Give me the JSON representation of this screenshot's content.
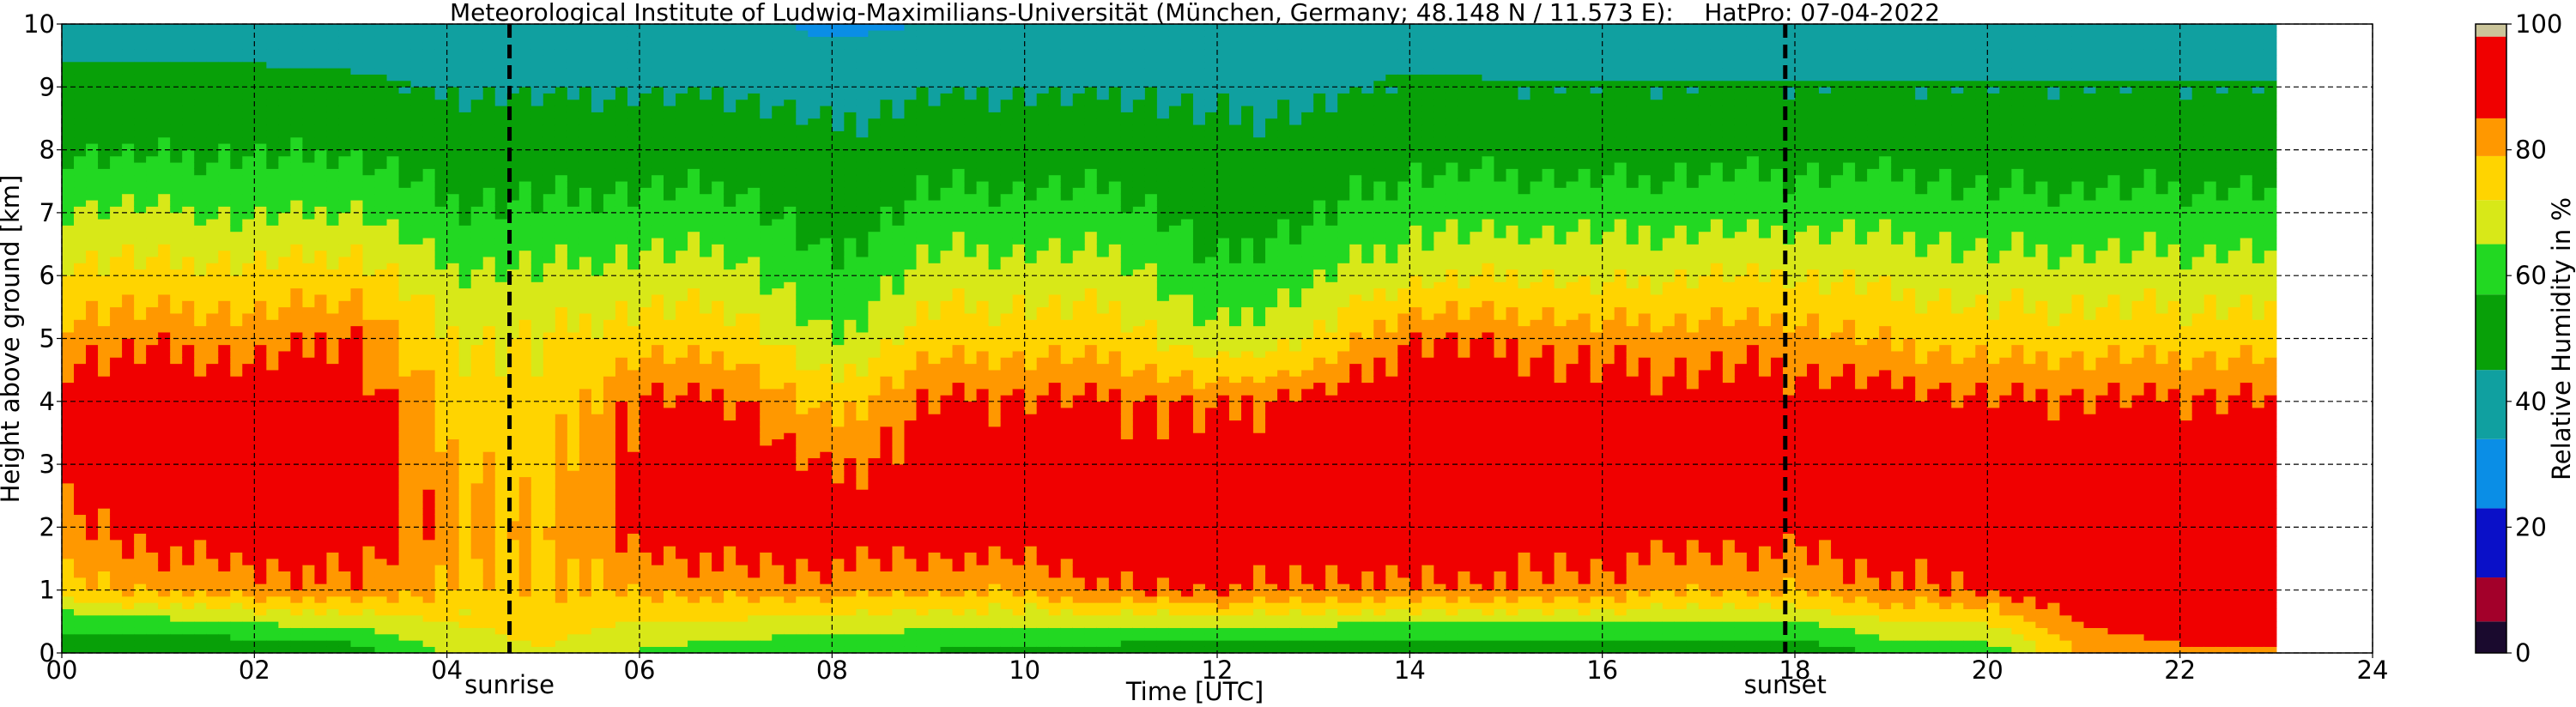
{
  "chart_data": {
    "type": "heatmap",
    "title": "Meteorological Institute of Ludwig-Maximilians-Universität (München, Germany; 48.148 N / 11.573 E):    HatPro: 07-04-2022",
    "xlabel": "Time [UTC]",
    "ylabel": "Height above ground [km]",
    "xlim": [
      0,
      24
    ],
    "ylim": [
      0,
      10
    ],
    "data_extent_x": [
      0,
      23
    ],
    "x_ticks": [
      "00",
      "02",
      "04",
      "06",
      "08",
      "10",
      "12",
      "14",
      "16",
      "18",
      "20",
      "22",
      "24"
    ],
    "y_ticks": [
      "0",
      "1",
      "2",
      "3",
      "4",
      "5",
      "6",
      "7",
      "8",
      "9",
      "10"
    ],
    "grid": true,
    "markers": [
      {
        "label": "sunrise",
        "x": 4.65
      },
      {
        "label": "sunset",
        "x": 17.9
      }
    ],
    "colorbar": {
      "label": "Relative Humidity in %",
      "ticks": [
        "0",
        "20",
        "40",
        "60",
        "80",
        "100"
      ],
      "range": [
        0,
        100
      ],
      "stops": [
        {
          "from": 0,
          "to": 5,
          "color": "#1a0a2e"
        },
        {
          "from": 5,
          "to": 12,
          "color": "#a3002a"
        },
        {
          "from": 12,
          "to": 23,
          "color": "#0a10c8"
        },
        {
          "from": 23,
          "to": 34,
          "color": "#0a8ee6"
        },
        {
          "from": 34,
          "to": 45,
          "color": "#10a0a0"
        },
        {
          "from": 45,
          "to": 57,
          "color": "#08a008"
        },
        {
          "from": 57,
          "to": 65,
          "color": "#22d822"
        },
        {
          "from": 65,
          "to": 72,
          "color": "#d8e818"
        },
        {
          "from": 72,
          "to": 79,
          "color": "#ffd400"
        },
        {
          "from": 79,
          "to": 85,
          "color": "#ff9800"
        },
        {
          "from": 85,
          "to": 98,
          "color": "#f00000"
        },
        {
          "from": 98,
          "to": 100,
          "color": "#cbc59a"
        }
      ]
    },
    "rh_profiles": [
      {
        "t": 0,
        "rh": [
          46,
          78,
          84,
          88,
          90,
          82,
          74,
          66,
          56,
          50,
          36
        ]
      },
      {
        "t": 1,
        "rh": [
          46,
          80,
          88,
          92,
          90,
          84,
          74,
          66,
          56,
          50,
          36
        ]
      },
      {
        "t": 2,
        "rh": [
          50,
          82,
          90,
          92,
          90,
          82,
          74,
          64,
          56,
          50,
          36
        ]
      },
      {
        "t": 3,
        "rh": [
          52,
          84,
          90,
          92,
          90,
          86,
          76,
          66,
          56,
          48,
          36
        ]
      },
      {
        "t": 4,
        "rh": [
          66,
          78,
          82,
          80,
          76,
          72,
          66,
          58,
          52,
          44,
          34
        ]
      },
      {
        "t": 5,
        "rh": [
          72,
          78,
          78,
          76,
          74,
          72,
          66,
          58,
          52,
          44,
          34
        ]
      },
      {
        "t": 6,
        "rh": [
          64,
          80,
          88,
          88,
          86,
          76,
          68,
          60,
          52,
          44,
          34
        ]
      },
      {
        "t": 7,
        "rh": [
          60,
          82,
          90,
          90,
          86,
          76,
          68,
          60,
          52,
          44,
          36
        ]
      },
      {
        "t": 8,
        "rh": [
          58,
          82,
          90,
          84,
          76,
          64,
          58,
          52,
          48,
          40,
          32
        ]
      },
      {
        "t": 9,
        "rh": [
          56,
          80,
          90,
          88,
          86,
          76,
          68,
          60,
          52,
          44,
          34
        ]
      },
      {
        "t": 10,
        "rh": [
          54,
          80,
          90,
          90,
          86,
          76,
          68,
          60,
          52,
          44,
          34
        ]
      },
      {
        "t": 11,
        "rh": [
          52,
          86,
          90,
          88,
          86,
          76,
          68,
          60,
          52,
          44,
          34
        ]
      },
      {
        "t": 12,
        "rh": [
          50,
          86,
          90,
          88,
          84,
          66,
          58,
          52,
          48,
          42,
          34
        ]
      },
      {
        "t": 13,
        "rh": [
          50,
          84,
          90,
          90,
          88,
          72,
          64,
          56,
          50,
          42,
          34
        ]
      },
      {
        "t": 14,
        "rh": [
          48,
          84,
          92,
          92,
          90,
          86,
          70,
          62,
          54,
          48,
          36
        ]
      },
      {
        "t": 15,
        "rh": [
          48,
          84,
          90,
          92,
          90,
          84,
          72,
          62,
          54,
          46,
          36
        ]
      },
      {
        "t": 16,
        "rh": [
          50,
          82,
          90,
          90,
          88,
          82,
          70,
          62,
          52,
          46,
          36
        ]
      },
      {
        "t": 17,
        "rh": [
          50,
          80,
          88,
          90,
          88,
          82,
          72,
          62,
          54,
          46,
          36
        ]
      },
      {
        "t": 18,
        "rh": [
          50,
          80,
          88,
          90,
          88,
          82,
          72,
          62,
          54,
          46,
          36
        ]
      },
      {
        "t": 19,
        "rh": [
          60,
          84,
          90,
          90,
          88,
          78,
          70,
          62,
          54,
          46,
          36
        ]
      },
      {
        "t": 20,
        "rh": [
          60,
          86,
          90,
          90,
          86,
          76,
          68,
          60,
          52,
          46,
          36
        ]
      },
      {
        "t": 21,
        "rh": [
          80,
          92,
          92,
          90,
          86,
          76,
          68,
          60,
          52,
          46,
          36
        ]
      },
      {
        "t": 22,
        "rh": [
          84,
          92,
          92,
          90,
          86,
          76,
          68,
          60,
          52,
          46,
          36
        ]
      },
      {
        "t": 23,
        "rh": [
          84,
          92,
          92,
          90,
          86,
          76,
          68,
          60,
          52,
          46,
          36
        ]
      }
    ]
  }
}
